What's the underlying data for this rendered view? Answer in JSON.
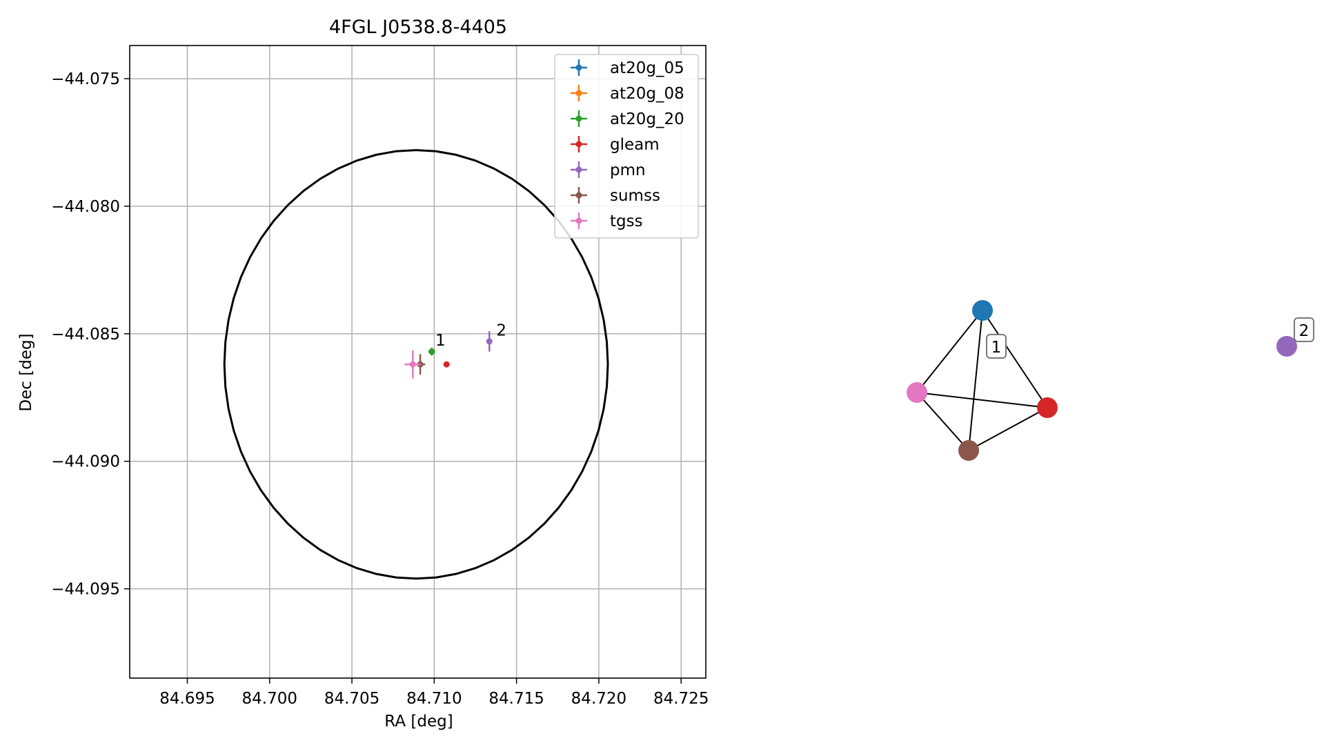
{
  "chart_data": [
    {
      "type": "scatter",
      "title": "4FGL J0538.8-4405",
      "xlabel": "RA [deg]",
      "ylabel": "Dec [deg]",
      "xlim": [
        84.6915,
        84.7265
      ],
      "ylim": [
        -44.0985,
        -44.0737
      ],
      "xticks": [
        84.695,
        84.7,
        84.705,
        84.71,
        84.715,
        84.72,
        84.725
      ],
      "xtick_labels": [
        "84.695",
        "84.700",
        "84.705",
        "84.710",
        "84.715",
        "84.720",
        "84.725"
      ],
      "yticks": [
        -44.075,
        -44.08,
        -44.085,
        -44.09,
        -44.095
      ],
      "ytick_labels": [
        "−44.075",
        "−44.080",
        "−44.085",
        "−44.090",
        "−44.095"
      ],
      "grid": true,
      "legend_position": "top-right",
      "ellipse": {
        "center": [
          84.7089,
          -44.0862
        ],
        "ra_half_width": 0.01165,
        "dec_half_height": 0.0084,
        "color": "#000000"
      },
      "series": [
        {
          "name": "at20g_05",
          "color": "#1f77b4",
          "points": [
            {
              "x": 84.70985,
              "y": -44.0857,
              "xerr": 0.0002,
              "yerr": 0.00015
            }
          ]
        },
        {
          "name": "at20g_08",
          "color": "#ff7f0e",
          "points": [
            {
              "x": 84.70985,
              "y": -44.0857,
              "xerr": 0.0002,
              "yerr": 0.00015
            }
          ]
        },
        {
          "name": "at20g_20",
          "color": "#2ca02c",
          "points": [
            {
              "x": 84.70985,
              "y": -44.0857,
              "xerr": 0.0002,
              "yerr": 0.00015
            }
          ]
        },
        {
          "name": "gleam",
          "color": "#d62728",
          "points": [
            {
              "x": 84.71075,
              "y": -44.0862,
              "xerr": 5e-05,
              "yerr": 3e-05
            }
          ]
        },
        {
          "name": "pmn",
          "color": "#9467bd",
          "points": [
            {
              "x": 84.71335,
              "y": -44.0853,
              "xerr": 0.00015,
              "yerr": 0.0004
            }
          ]
        },
        {
          "name": "sumss",
          "color": "#8c564b",
          "points": [
            {
              "x": 84.70915,
              "y": -44.0862,
              "xerr": 0.0003,
              "yerr": 0.0004
            }
          ]
        },
        {
          "name": "tgss",
          "color": "#e377c2",
          "points": [
            {
              "x": 84.7087,
              "y": -44.0862,
              "xerr": 0.0005,
              "yerr": 0.00055
            }
          ]
        }
      ],
      "annotations": [
        {
          "text": "1",
          "x": 84.70995,
          "y": -44.08555
        },
        {
          "text": "2",
          "x": 84.71365,
          "y": -44.08515
        }
      ]
    },
    {
      "type": "network",
      "nodes": [
        {
          "id": "at20g",
          "color": "#1f77b4"
        },
        {
          "id": "gleam",
          "color": "#d62728"
        },
        {
          "id": "sumss",
          "color": "#8c564b"
        },
        {
          "id": "tgss",
          "color": "#e377c2"
        },
        {
          "id": "pmn",
          "color": "#9467bd"
        }
      ],
      "edges": [
        [
          "at20g",
          "tgss"
        ],
        [
          "at20g",
          "gleam"
        ],
        [
          "at20g",
          "sumss"
        ],
        [
          "tgss",
          "gleam"
        ],
        [
          "tgss",
          "sumss"
        ],
        [
          "gleam",
          "sumss"
        ]
      ],
      "cluster_labels": [
        {
          "text": "1"
        },
        {
          "text": "2"
        }
      ]
    }
  ]
}
